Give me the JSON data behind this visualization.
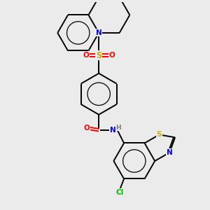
{
  "background_color": "#ebebeb",
  "atom_colors": {
    "N": "#0000ff",
    "O": "#ff0000",
    "S": "#ccaa00",
    "Cl": "#00bb00",
    "C": "#000000",
    "H": "#7a7a7a"
  },
  "figsize": [
    3.0,
    3.0
  ],
  "dpi": 100,
  "lw": 1.4,
  "font_size": 7.5
}
